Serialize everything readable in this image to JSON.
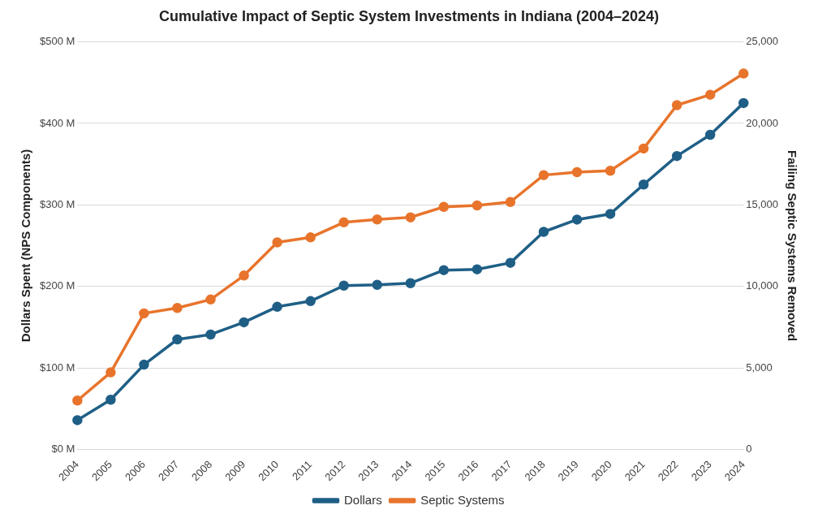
{
  "chart_data": {
    "type": "line",
    "title": "Cumulative Impact of Septic System Investments in Indiana (2004–2024)",
    "ylabel": "Dollars Spent (NPS Components)",
    "y2label": "Failing Septic Systems Removed",
    "categories": [
      "2004",
      "2005",
      "2006",
      "2007",
      "2008",
      "2009",
      "2010",
      "2011",
      "2012",
      "2013",
      "2014",
      "2015",
      "2016",
      "2017",
      "2018",
      "2019",
      "2020",
      "2021",
      "2022",
      "2023",
      "2024"
    ],
    "series": [
      {
        "name": "Dollars",
        "color": "#1f5f86",
        "values": [
          36,
          61,
          104,
          135,
          141,
          156,
          175,
          182,
          201,
          202,
          204,
          220,
          221,
          229,
          267,
          282,
          289,
          325,
          360,
          386,
          425
        ]
      },
      {
        "name": "Septic Systems",
        "color": "#e8742c",
        "axis": "y2",
        "values": [
          3000,
          4730,
          8350,
          8680,
          9200,
          10670,
          12700,
          13010,
          13930,
          14110,
          14240,
          14880,
          14970,
          15180,
          16830,
          17010,
          17100,
          18460,
          21120,
          21760,
          23060
        ]
      }
    ],
    "ylim": [
      0,
      500
    ],
    "yticks": [
      {
        "value": 0,
        "label": "$0 M"
      },
      {
        "value": 100,
        "label": "$100 M"
      },
      {
        "value": 200,
        "label": "$200 M"
      },
      {
        "value": 300,
        "label": "$300 M"
      },
      {
        "value": 400,
        "label": "$400 M"
      },
      {
        "value": 500,
        "label": "$500 M"
      }
    ],
    "y2lim": [
      0,
      25000
    ],
    "y2ticks": [
      {
        "value": 0,
        "label": "0"
      },
      {
        "value": 5000,
        "label": "5,000"
      },
      {
        "value": 10000,
        "label": "10,000"
      },
      {
        "value": 15000,
        "label": "15,000"
      },
      {
        "value": 20000,
        "label": "20,000"
      },
      {
        "value": 25000,
        "label": "25,000"
      }
    ],
    "grid": "y",
    "legend": "bottom",
    "marker": "circle",
    "line_style": "solid"
  }
}
